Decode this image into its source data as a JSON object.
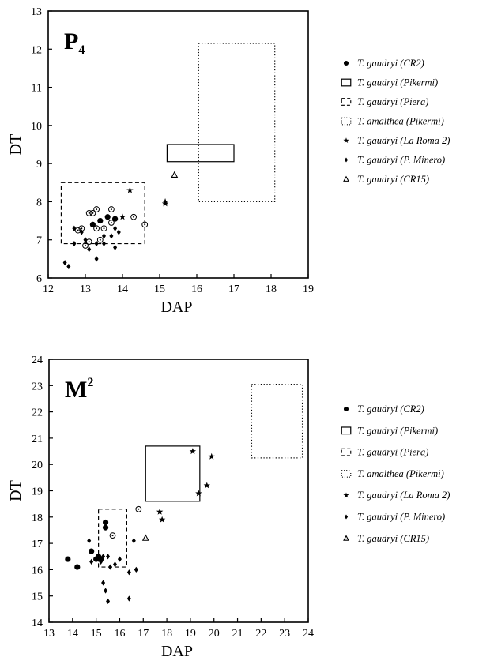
{
  "legend_entries": [
    {
      "marker": "filled-circle",
      "text": "T. gaudryi (CR2)"
    },
    {
      "marker": "solid-rect",
      "text": "T. gaudryi (Pikermi)"
    },
    {
      "marker": "dashed-rect",
      "text": "T. gaudryi (Piera)"
    },
    {
      "marker": "dotted-rect",
      "text": "T. amalthea (Pikermi)"
    },
    {
      "marker": "star",
      "text": "T. gaudryi (La Roma 2)"
    },
    {
      "marker": "diamond",
      "text": "T. gaudryi (P. Minero)"
    },
    {
      "marker": "open-triangle",
      "text": "T. gaudryi (CR15)"
    }
  ],
  "chart_data": [
    {
      "type": "scatter",
      "panel_label": "P",
      "panel_sub": "4",
      "xlabel": "DAP",
      "ylabel": "DT",
      "xlim": [
        12,
        19
      ],
      "ylim": [
        6,
        13
      ],
      "xticks": [
        "12",
        "13",
        "14",
        "15",
        "16",
        "17",
        "18",
        "19"
      ],
      "yticks": [
        "6",
        "7",
        "8",
        "9",
        "10",
        "11",
        "12",
        "13"
      ],
      "ranges": [
        {
          "series": "T. gaudryi (Pikermi)",
          "style": "solid",
          "x": [
            15.2,
            17.0
          ],
          "y": [
            9.05,
            9.5
          ]
        },
        {
          "series": "T. gaudryi (Piera)",
          "style": "dashed",
          "x": [
            12.35,
            14.6
          ],
          "y": [
            6.9,
            8.5
          ]
        },
        {
          "series": "T. amalthea (Pikermi)",
          "style": "dotted",
          "x": [
            16.05,
            18.1
          ],
          "y": [
            8.0,
            12.15
          ]
        }
      ],
      "points": [
        {
          "series": "T. gaudryi (CR2)",
          "marker": "filled-circle",
          "xy": [
            [
              13.6,
              7.6
            ],
            [
              13.4,
              7.5
            ],
            [
              13.8,
              7.55
            ],
            [
              13.2,
              7.4
            ]
          ]
        },
        {
          "series": "open-circle",
          "marker": "open-circle",
          "xy": [
            [
              13.1,
              7.7
            ],
            [
              13.2,
              7.7
            ],
            [
              13.3,
              7.8
            ],
            [
              13.7,
              7.8
            ],
            [
              14.3,
              7.6
            ],
            [
              14.6,
              7.4
            ],
            [
              12.9,
              7.3
            ],
            [
              13.0,
              6.85
            ],
            [
              13.1,
              6.95
            ],
            [
              13.3,
              7.3
            ],
            [
              13.5,
              7.3
            ],
            [
              12.8,
              7.25
            ],
            [
              13.4,
              7.0
            ],
            [
              13.7,
              7.45
            ]
          ]
        },
        {
          "series": "T. gaudryi (La Roma 2)",
          "marker": "star",
          "xy": [
            [
              14.2,
              8.3
            ],
            [
              15.15,
              8.0
            ],
            [
              15.15,
              7.95
            ],
            [
              14.0,
              7.6
            ]
          ]
        },
        {
          "series": "T. gaudryi (P. Minero)",
          "marker": "diamond",
          "xy": [
            [
              12.45,
              6.4
            ],
            [
              12.55,
              6.3
            ],
            [
              12.7,
              7.3
            ],
            [
              12.7,
              6.9
            ],
            [
              12.9,
              7.2
            ],
            [
              13.0,
              7.0
            ],
            [
              13.1,
              6.75
            ],
            [
              13.3,
              6.5
            ],
            [
              13.3,
              6.9
            ],
            [
              13.5,
              6.9
            ],
            [
              13.7,
              7.1
            ],
            [
              13.8,
              6.8
            ],
            [
              13.8,
              7.3
            ],
            [
              13.9,
              7.2
            ],
            [
              13.5,
              7.1
            ]
          ]
        },
        {
          "series": "T. gaudryi (CR15)",
          "marker": "open-triangle",
          "xy": [
            [
              15.4,
              8.7
            ]
          ]
        }
      ]
    },
    {
      "type": "scatter",
      "panel_label": "M",
      "panel_sup": "2",
      "xlabel": "DAP",
      "ylabel": "DT",
      "xlim": [
        13,
        24
      ],
      "ylim": [
        14,
        24
      ],
      "xticks": [
        "13",
        "14",
        "15",
        "16",
        "17",
        "18",
        "19",
        "20",
        "21",
        "22",
        "23",
        "24"
      ],
      "yticks": [
        "14",
        "15",
        "16",
        "17",
        "18",
        "19",
        "20",
        "21",
        "22",
        "23",
        "24"
      ],
      "ranges": [
        {
          "series": "T. gaudryi (Pikermi)",
          "style": "solid",
          "x": [
            17.1,
            19.4
          ],
          "y": [
            18.6,
            20.7
          ]
        },
        {
          "series": "T. gaudryi (Piera)",
          "style": "dashed",
          "x": [
            15.1,
            16.3
          ],
          "y": [
            16.1,
            18.3
          ]
        },
        {
          "series": "T. amalthea (Pikermi)",
          "style": "dotted",
          "x": [
            21.6,
            23.75
          ],
          "y": [
            20.25,
            23.05
          ]
        }
      ],
      "points": [
        {
          "series": "T. gaudryi (CR2)",
          "marker": "filled-circle",
          "xy": [
            [
              13.8,
              16.4
            ],
            [
              14.2,
              16.1
            ],
            [
              14.8,
              16.7
            ],
            [
              15.0,
              16.4
            ],
            [
              15.4,
              17.8
            ],
            [
              15.4,
              17.6
            ],
            [
              15.1,
              16.5
            ],
            [
              15.2,
              16.4
            ]
          ]
        },
        {
          "series": "open-circle",
          "marker": "open-circle",
          "xy": [
            [
              15.7,
              17.3
            ],
            [
              16.8,
              18.3
            ]
          ]
        },
        {
          "series": "T. gaudryi (La Roma 2)",
          "marker": "star",
          "xy": [
            [
              19.1,
              20.5
            ],
            [
              19.9,
              20.3
            ],
            [
              19.7,
              19.2
            ],
            [
              19.35,
              18.9
            ],
            [
              17.7,
              18.2
            ],
            [
              17.8,
              17.9
            ]
          ]
        },
        {
          "series": "T. gaudryi (P. Minero)",
          "marker": "diamond",
          "xy": [
            [
              14.7,
              17.1
            ],
            [
              14.8,
              16.3
            ],
            [
              15.1,
              16.4
            ],
            [
              15.3,
              16.5
            ],
            [
              15.2,
              16.3
            ],
            [
              15.3,
              15.5
            ],
            [
              15.4,
              15.2
            ],
            [
              15.5,
              16.5
            ],
            [
              15.5,
              14.8
            ],
            [
              15.6,
              16.1
            ],
            [
              15.8,
              16.2
            ],
            [
              16.0,
              16.4
            ],
            [
              16.4,
              15.9
            ],
            [
              16.6,
              17.1
            ],
            [
              16.7,
              16.0
            ],
            [
              16.4,
              14.9
            ]
          ]
        },
        {
          "series": "T. gaudryi (CR15)",
          "marker": "open-triangle",
          "xy": [
            [
              17.1,
              17.2
            ]
          ]
        }
      ]
    }
  ]
}
